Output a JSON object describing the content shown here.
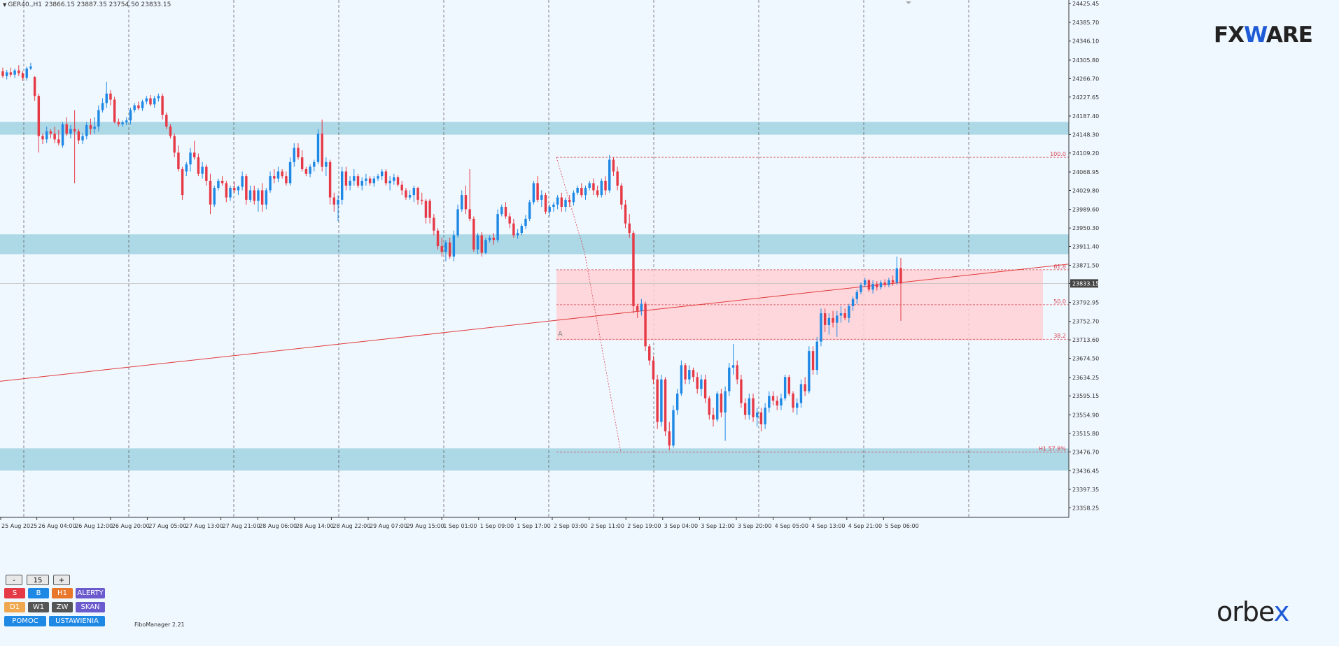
{
  "header": {
    "symbol": "GER40.,H1",
    "ohlc": "23866.15 23887.35 23754.50 23833.15"
  },
  "logos": {
    "fxware_fx": "FX",
    "fxware_w": "W",
    "fxware_are": "ARE",
    "orbex_orb": "orb",
    "orbex_e": "e",
    "orbex_x": "x"
  },
  "panel": {
    "minus": "-",
    "value": "15",
    "plus": "+",
    "row1": [
      "S",
      "B",
      "H1",
      "ALERTY"
    ],
    "row2": [
      "D1",
      "W1",
      "ZW",
      "SKAN"
    ],
    "row3": [
      "POMOC",
      "USTAWIENIA"
    ],
    "tool_name": "FiboManager 2.21"
  },
  "chart_data": {
    "type": "candlestick",
    "symbol": "GER40.",
    "timeframe": "H1",
    "current_price": "23833.15",
    "y_ticks": [
      "24425.45",
      "24385.70",
      "24346.10",
      "24305.80",
      "24266.70",
      "24227.65",
      "24187.40",
      "24148.30",
      "24109.20",
      "24068.95",
      "24029.80",
      "23989.60",
      "23950.30",
      "23911.40",
      "23871.50",
      "23833.15",
      "23792.95",
      "23752.70",
      "23713.60",
      "23674.50",
      "23634.25",
      "23595.15",
      "23554.90",
      "23515.80",
      "23476.70",
      "23436.45",
      "23397.35",
      "23358.25"
    ],
    "y_range": [
      23338,
      24433
    ],
    "x_ticks": [
      "25 Aug 2025",
      "26 Aug 04:00",
      "26 Aug 12:00",
      "26 Aug 20:00",
      "27 Aug 05:00",
      "27 Aug 13:00",
      "27 Aug 21:00",
      "28 Aug 06:00",
      "28 Aug 14:00",
      "28 Aug 22:00",
      "29 Aug 07:00",
      "29 Aug 15:00",
      "1 Sep 01:00",
      "1 Sep 09:00",
      "1 Sep 17:00",
      "2 Sep 03:00",
      "2 Sep 11:00",
      "2 Sep 19:00",
      "3 Sep 04:00",
      "3 Sep 12:00",
      "3 Sep 20:00",
      "4 Sep 05:00",
      "4 Sep 13:00",
      "4 Sep 21:00",
      "5 Sep 06:00"
    ],
    "zones": [
      {
        "from": 24148,
        "to": 24175,
        "color": "#add8e6"
      },
      {
        "from": 23895,
        "to": 23937,
        "color": "#add8e6"
      },
      {
        "from": 23437,
        "to": 23484,
        "color": "#add8e6"
      }
    ],
    "fib_box": {
      "from": 23713,
      "to": 23862,
      "color": "#ffd1d6",
      "label": "A"
    },
    "fib_levels": [
      {
        "label": "100.0",
        "price": 24100
      },
      {
        "label": "61.8",
        "price": 23862
      },
      {
        "label": "50.0",
        "price": 23788
      },
      {
        "label": "38.2",
        "price": 23715
      },
      {
        "label": "H1 57.8%",
        "price": 23476
      }
    ],
    "trendline": {
      "from_price": 23626,
      "to_price": 23874
    },
    "candles": [
      [
        24282,
        24290,
        24268,
        24272
      ],
      [
        24272,
        24285,
        24265,
        24280
      ],
      [
        24280,
        24290,
        24270,
        24275
      ],
      [
        24275,
        24288,
        24268,
        24284
      ],
      [
        24284,
        24295,
        24272,
        24278
      ],
      [
        24278,
        24282,
        24262,
        24268
      ],
      [
        24268,
        24292,
        24262,
        24288
      ],
      [
        24288,
        24300,
        24285,
        24292
      ],
      [
        24270,
        24272,
        24220,
        24230
      ],
      [
        24230,
        24235,
        24110,
        24145
      ],
      [
        24145,
        24150,
        24128,
        24138
      ],
      [
        24138,
        24165,
        24130,
        24155
      ],
      [
        24155,
        24160,
        24140,
        24150
      ],
      [
        24150,
        24165,
        24130,
        24138
      ],
      [
        24138,
        24158,
        24125,
        24130
      ],
      [
        24125,
        24175,
        24120,
        24170
      ],
      [
        24170,
        24185,
        24145,
        24150
      ],
      [
        24150,
        24168,
        24140,
        24160
      ],
      [
        24160,
        24200,
        24045,
        24155
      ],
      [
        24155,
        24160,
        24128,
        24136
      ],
      [
        24136,
        24152,
        24128,
        24145
      ],
      [
        24145,
        24175,
        24138,
        24168
      ],
      [
        24168,
        24182,
        24148,
        24160
      ],
      [
        24160,
        24185,
        24150,
        24165
      ],
      [
        24165,
        24210,
        24155,
        24200
      ],
      [
        24200,
        24225,
        24195,
        24215
      ],
      [
        24215,
        24260,
        24205,
        24235
      ],
      [
        24235,
        24242,
        24210,
        24222
      ],
      [
        24222,
        24228,
        24172,
        24175
      ],
      [
        24175,
        24182,
        24165,
        24170
      ],
      [
        24170,
        24178,
        24165,
        24174
      ],
      [
        24174,
        24185,
        24168,
        24178
      ],
      [
        24178,
        24205,
        24170,
        24200
      ],
      [
        24200,
        24215,
        24195,
        24210
      ],
      [
        24210,
        24218,
        24200,
        24204
      ],
      [
        24204,
        24222,
        24198,
        24218
      ],
      [
        24218,
        24230,
        24212,
        24225
      ],
      [
        24225,
        24232,
        24208,
        24212
      ],
      [
        24212,
        24230,
        24205,
        24225
      ],
      [
        24225,
        24235,
        24218,
        24230
      ],
      [
        24230,
        24235,
        24180,
        24190
      ],
      [
        24190,
        24195,
        24160,
        24165
      ],
      [
        24165,
        24170,
        24140,
        24145
      ],
      [
        24145,
        24150,
        24100,
        24110
      ],
      [
        24110,
        24125,
        24070,
        24075
      ],
      [
        24075,
        24080,
        24010,
        24020
      ],
      [
        24070,
        24090,
        24060,
        24085
      ],
      [
        24085,
        24120,
        24070,
        24110
      ],
      [
        24110,
        24135,
        24095,
        24100
      ],
      [
        24100,
        24108,
        24060,
        24065
      ],
      [
        24065,
        24090,
        24055,
        24080
      ],
      [
        24080,
        24085,
        24040,
        24050
      ],
      [
        24050,
        24065,
        23980,
        24000
      ],
      [
        24000,
        24040,
        23995,
        24035
      ],
      [
        24035,
        24055,
        24030,
        24050
      ],
      [
        24050,
        24060,
        24040,
        24045
      ],
      [
        24045,
        24050,
        24005,
        24015
      ],
      [
        24015,
        24040,
        24008,
        24035
      ],
      [
        24035,
        24048,
        24025,
        24030
      ],
      [
        24030,
        24040,
        24020,
        24038
      ],
      [
        24038,
        24070,
        24030,
        24060
      ],
      [
        24060,
        24065,
        24000,
        24010
      ],
      [
        24010,
        24040,
        24005,
        24030
      ],
      [
        24030,
        24040,
        24000,
        24008
      ],
      [
        24008,
        24035,
        23985,
        24030
      ],
      [
        24030,
        24045,
        23985,
        24000
      ],
      [
        24000,
        24035,
        23990,
        24030
      ],
      [
        24030,
        24070,
        24025,
        24060
      ],
      [
        24060,
        24075,
        24045,
        24055
      ],
      [
        24055,
        24080,
        24048,
        24070
      ],
      [
        24070,
        24075,
        24055,
        24060
      ],
      [
        24060,
        24070,
        24040,
        24045
      ],
      [
        24045,
        24100,
        24040,
        24090
      ],
      [
        24090,
        24130,
        24080,
        24120
      ],
      [
        24120,
        24130,
        24095,
        24100
      ],
      [
        24100,
        24115,
        24070,
        24075
      ],
      [
        24075,
        24080,
        24060,
        24065
      ],
      [
        24065,
        24085,
        24058,
        24080
      ],
      [
        24080,
        24095,
        24070,
        24090
      ],
      [
        24090,
        24160,
        24085,
        24150
      ],
      [
        24150,
        24180,
        24070,
        24080
      ],
      [
        24080,
        24100,
        24060,
        24090
      ],
      [
        24090,
        24095,
        24000,
        24015
      ],
      [
        24015,
        24025,
        23985,
        24000
      ],
      [
        24000,
        24020,
        23965,
        24010
      ],
      [
        24010,
        24080,
        24000,
        24070
      ],
      [
        24070,
        24080,
        24030,
        24040
      ],
      [
        24040,
        24060,
        24030,
        24050
      ],
      [
        24050,
        24075,
        24040,
        24060
      ],
      [
        24060,
        24065,
        24035,
        24040
      ],
      [
        24040,
        24058,
        24030,
        24050
      ],
      [
        24050,
        24065,
        24040,
        24055
      ],
      [
        24055,
        24060,
        24040,
        24045
      ],
      [
        24045,
        24060,
        24038,
        24055
      ],
      [
        24055,
        24065,
        24050,
        24060
      ],
      [
        24060,
        24075,
        24052,
        24070
      ],
      [
        24070,
        24075,
        24040,
        24045
      ],
      [
        24045,
        24060,
        24030,
        24050
      ],
      [
        24050,
        24065,
        24042,
        24058
      ],
      [
        24058,
        24062,
        24038,
        24042
      ],
      [
        24042,
        24050,
        24020,
        24030
      ],
      [
        24030,
        24035,
        24010,
        24015
      ],
      [
        24015,
        24030,
        24010,
        24020
      ],
      [
        24020,
        24040,
        24005,
        24035
      ],
      [
        24035,
        24038,
        24000,
        24010
      ],
      [
        24010,
        24025,
        24000,
        24008
      ],
      [
        24008,
        24012,
        23960,
        23972
      ],
      [
        24008,
        24012,
        23960,
        23972
      ],
      [
        23972,
        23980,
        23935,
        23945
      ],
      [
        23945,
        23950,
        23905,
        23912
      ],
      [
        23912,
        23930,
        23890,
        23900
      ],
      [
        23900,
        23925,
        23880,
        23920
      ],
      [
        23920,
        23930,
        23885,
        23890
      ],
      [
        23890,
        23945,
        23880,
        23935
      ],
      [
        23935,
        24000,
        23930,
        23990
      ],
      [
        23990,
        24030,
        23985,
        24020
      ],
      [
        24020,
        24040,
        23980,
        23990
      ],
      [
        23990,
        24075,
        23965,
        23970
      ],
      [
        23970,
        23975,
        23900,
        23905
      ],
      [
        23905,
        23940,
        23895,
        23935
      ],
      [
        23935,
        23942,
        23890,
        23898
      ],
      [
        23898,
        23930,
        23895,
        23925
      ],
      [
        23925,
        23935,
        23920,
        23930
      ],
      [
        23930,
        23940,
        23915,
        23925
      ],
      [
        23925,
        23990,
        23920,
        23980
      ],
      [
        23980,
        24000,
        23975,
        23995
      ],
      [
        23995,
        24005,
        23970,
        23975
      ],
      [
        23975,
        23982,
        23950,
        23960
      ],
      [
        23960,
        23970,
        23930,
        23935
      ],
      [
        23935,
        23948,
        23928,
        23940
      ],
      [
        23940,
        23960,
        23935,
        23955
      ],
      [
        23955,
        23978,
        23948,
        23970
      ],
      [
        23970,
        24010,
        23965,
        24005
      ],
      [
        24005,
        24050,
        24000,
        24045
      ],
      [
        24045,
        24060,
        24005,
        24010
      ],
      [
        24010,
        24030,
        23995,
        24020
      ],
      [
        24020,
        24025,
        23980,
        23985
      ],
      [
        23985,
        24000,
        23975,
        23995
      ],
      [
        23995,
        24005,
        23985,
        24000
      ],
      [
        24000,
        24020,
        23990,
        24015
      ],
      [
        24015,
        24025,
        23985,
        23995
      ],
      [
        23995,
        24015,
        23985,
        24010
      ],
      [
        24010,
        24020,
        23995,
        24005
      ],
      [
        24005,
        24030,
        23998,
        24025
      ],
      [
        24025,
        24040,
        24020,
        24035
      ],
      [
        24035,
        24045,
        24015,
        24020
      ],
      [
        24020,
        24040,
        24010,
        24035
      ],
      [
        24035,
        24050,
        24030,
        24045
      ],
      [
        24045,
        24055,
        24020,
        24030
      ],
      [
        24030,
        24040,
        24015,
        24020
      ],
      [
        24020,
        24055,
        24015,
        24050
      ],
      [
        24050,
        24060,
        24020,
        24030
      ],
      [
        24030,
        24105,
        24025,
        24095
      ],
      [
        24095,
        24100,
        24060,
        24070
      ],
      [
        24070,
        24080,
        24030,
        24040
      ],
      [
        24040,
        24045,
        23990,
        24000
      ],
      [
        24000,
        24010,
        23950,
        23960
      ],
      [
        23960,
        23980,
        23930,
        23940
      ],
      [
        23940,
        23945,
        23770,
        23785
      ],
      [
        23785,
        23790,
        23760,
        23775
      ],
      [
        23775,
        23800,
        23765,
        23790
      ],
      [
        23790,
        23795,
        23690,
        23700
      ],
      [
        23700,
        23705,
        23660,
        23670
      ],
      [
        23670,
        23680,
        23620,
        23630
      ],
      [
        23630,
        23640,
        23525,
        23540
      ],
      [
        23540,
        23640,
        23530,
        23630
      ],
      [
        23630,
        23635,
        23510,
        23520
      ],
      [
        23520,
        23540,
        23480,
        23490
      ],
      [
        23490,
        23575,
        23485,
        23565
      ],
      [
        23565,
        23610,
        23555,
        23600
      ],
      [
        23600,
        23670,
        23595,
        23660
      ],
      [
        23660,
        23665,
        23620,
        23630
      ],
      [
        23630,
        23660,
        23620,
        23650
      ],
      [
        23650,
        23655,
        23625,
        23635
      ],
      [
        23635,
        23645,
        23600,
        23610
      ],
      [
        23610,
        23640,
        23595,
        23630
      ],
      [
        23630,
        23640,
        23580,
        23590
      ],
      [
        23590,
        23595,
        23545,
        23555
      ],
      [
        23555,
        23570,
        23530,
        23545
      ],
      [
        23545,
        23605,
        23540,
        23600
      ],
      [
        23600,
        23610,
        23550,
        23560
      ],
      [
        23560,
        23615,
        23500,
        23605
      ],
      [
        23605,
        23665,
        23595,
        23655
      ],
      [
        23655,
        23705,
        23640,
        23660
      ],
      [
        23660,
        23670,
        23620,
        23630
      ],
      [
        23630,
        23640,
        23570,
        23580
      ],
      [
        23580,
        23590,
        23545,
        23555
      ],
      [
        23555,
        23600,
        23545,
        23590
      ],
      [
        23590,
        23600,
        23540,
        23550
      ],
      [
        23550,
        23570,
        23530,
        23560
      ],
      [
        23560,
        23570,
        23520,
        23535
      ],
      [
        23535,
        23580,
        23525,
        23570
      ],
      [
        23570,
        23605,
        23560,
        23595
      ],
      [
        23595,
        23605,
        23575,
        23585
      ],
      [
        23585,
        23595,
        23565,
        23575
      ],
      [
        23575,
        23600,
        23565,
        23590
      ],
      [
        23590,
        23640,
        23585,
        23635
      ],
      [
        23635,
        23640,
        23595,
        23600
      ],
      [
        23600,
        23605,
        23560,
        23570
      ],
      [
        23570,
        23590,
        23555,
        23580
      ],
      [
        23580,
        23630,
        23570,
        23620
      ],
      [
        23620,
        23635,
        23595,
        23605
      ],
      [
        23605,
        23700,
        23600,
        23690
      ],
      [
        23690,
        23700,
        23640,
        23650
      ],
      [
        23650,
        23720,
        23640,
        23710
      ],
      [
        23710,
        23780,
        23700,
        23770
      ],
      [
        23770,
        23780,
        23730,
        23745
      ],
      [
        23745,
        23770,
        23725,
        23760
      ],
      [
        23760,
        23775,
        23740,
        23750
      ],
      [
        23750,
        23775,
        23720,
        23765
      ],
      [
        23765,
        23785,
        23750,
        23770
      ],
      [
        23770,
        23780,
        23755,
        23760
      ],
      [
        23760,
        23790,
        23750,
        23785
      ],
      [
        23785,
        23805,
        23775,
        23800
      ],
      [
        23800,
        23820,
        23790,
        23815
      ],
      [
        23815,
        23835,
        23810,
        23830
      ],
      [
        23830,
        23845,
        23825,
        23840
      ],
      [
        23840,
        23842,
        23815,
        23820
      ],
      [
        23820,
        23840,
        23812,
        23832
      ],
      [
        23832,
        23838,
        23818,
        23825
      ],
      [
        23825,
        23840,
        23820,
        23835
      ],
      [
        23835,
        23842,
        23825,
        23830
      ],
      [
        23830,
        23845,
        23825,
        23840
      ],
      [
        23840,
        23850,
        23828,
        23835
      ],
      [
        23835,
        23890,
        23830,
        23865
      ],
      [
        23866,
        23887,
        23754,
        23833
      ]
    ]
  }
}
